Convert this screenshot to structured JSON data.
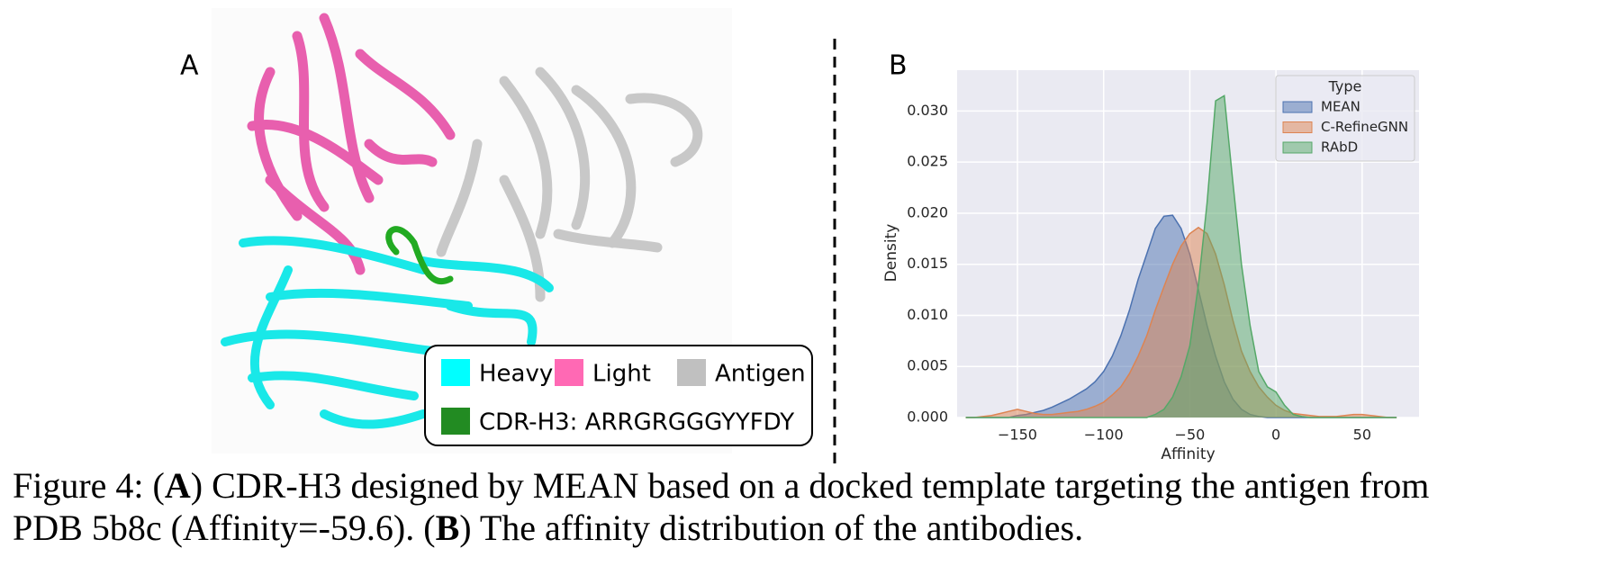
{
  "panel_a": {
    "label": "A",
    "legend": [
      {
        "name": "Heavy",
        "color": "#00ffff"
      },
      {
        "name": "Light",
        "color": "#ff69b4"
      },
      {
        "name": "Antigen",
        "color": "#c0c0c0"
      },
      {
        "name": "CDR-H3: ARRGRGGGYYFDY",
        "color": "#228b22"
      }
    ]
  },
  "chart_data": {
    "type": "area",
    "panel_label": "B",
    "xlabel": "Affinity",
    "ylabel": "Density",
    "legend_title": "Type",
    "legend_position": "upper right",
    "grid": true,
    "x": [
      -180,
      -175,
      -170,
      -165,
      -160,
      -155,
      -150,
      -145,
      -140,
      -135,
      -130,
      -125,
      -120,
      -115,
      -110,
      -105,
      -100,
      -95,
      -90,
      -85,
      -80,
      -75,
      -70,
      -65,
      -60,
      -55,
      -50,
      -45,
      -40,
      -35,
      -30,
      -25,
      -20,
      -15,
      -10,
      -5,
      0,
      5,
      10,
      15,
      20,
      25,
      30,
      35,
      40,
      45,
      50,
      55,
      60,
      65,
      70
    ],
    "series": [
      {
        "name": "MEAN",
        "color": "#4c72b0",
        "values": [
          0,
          0,
          0,
          0,
          0,
          0,
          0.0002,
          0.0003,
          0.0005,
          0.0007,
          0.001,
          0.0014,
          0.0018,
          0.0023,
          0.0028,
          0.0035,
          0.0045,
          0.006,
          0.008,
          0.0105,
          0.0135,
          0.016,
          0.0185,
          0.0197,
          0.0198,
          0.0185,
          0.016,
          0.0125,
          0.009,
          0.006,
          0.0035,
          0.0018,
          0.0008,
          0.0003,
          0.0001,
          0,
          0,
          0,
          0,
          0,
          0,
          0,
          0,
          0,
          0,
          0,
          0,
          0,
          0,
          0,
          0
        ]
      },
      {
        "name": "C-RefineGNN",
        "color": "#dd8452",
        "values": [
          0,
          0,
          0.0001,
          0.0002,
          0.0004,
          0.0006,
          0.0008,
          0.0006,
          0.0004,
          0.0003,
          0.0003,
          0.0004,
          0.0005,
          0.0006,
          0.0008,
          0.0011,
          0.0015,
          0.0022,
          0.003,
          0.0043,
          0.006,
          0.008,
          0.0105,
          0.0128,
          0.015,
          0.0168,
          0.018,
          0.0186,
          0.018,
          0.016,
          0.013,
          0.0095,
          0.0065,
          0.0045,
          0.003,
          0.002,
          0.0012,
          0.0007,
          0.0004,
          0.0003,
          0.0002,
          0.0001,
          0.0001,
          0.0001,
          0.0002,
          0.0003,
          0.0003,
          0.0002,
          0.0001,
          0,
          0
        ]
      },
      {
        "name": "RAbD",
        "color": "#55a868",
        "values": [
          0,
          0,
          0,
          0,
          0,
          0,
          0,
          0,
          0,
          0,
          0,
          0,
          0,
          0,
          0,
          0,
          0,
          0,
          0,
          0,
          0,
          0,
          0.0003,
          0.0008,
          0.002,
          0.004,
          0.007,
          0.013,
          0.021,
          0.031,
          0.0315,
          0.023,
          0.015,
          0.009,
          0.0045,
          0.003,
          0.0025,
          0.0012,
          0.0003,
          0.0001,
          0,
          0,
          0,
          0,
          0,
          0,
          0,
          0,
          0,
          0,
          0
        ]
      }
    ],
    "xlim": [
      -185,
      83
    ],
    "xticks": [
      {
        "value": -150,
        "label": "−150"
      },
      {
        "value": -100,
        "label": "−100"
      },
      {
        "value": -50,
        "label": "−50"
      },
      0,
      50
    ],
    "ylim": [
      0,
      0.034
    ],
    "yticks": [
      {
        "value": 0,
        "label": "0.000"
      },
      {
        "value": 0.005,
        "label": "0.005"
      },
      {
        "value": 0.01,
        "label": "0.010"
      },
      {
        "value": 0.015,
        "label": "0.015"
      },
      {
        "value": 0.02,
        "label": "0.020"
      },
      {
        "value": 0.025,
        "label": "0.025"
      },
      {
        "value": 0.03,
        "label": "0.030"
      }
    ]
  },
  "caption": {
    "line1": [
      "Figure 4: (",
      "A",
      ") CDR-H3 designed by MEAN based on a docked template targeting the antigen from"
    ],
    "line2": [
      "PDB 5b8c (Affinity=-59.6). (",
      "B",
      ") The affinity distribution of the antibodies."
    ]
  }
}
